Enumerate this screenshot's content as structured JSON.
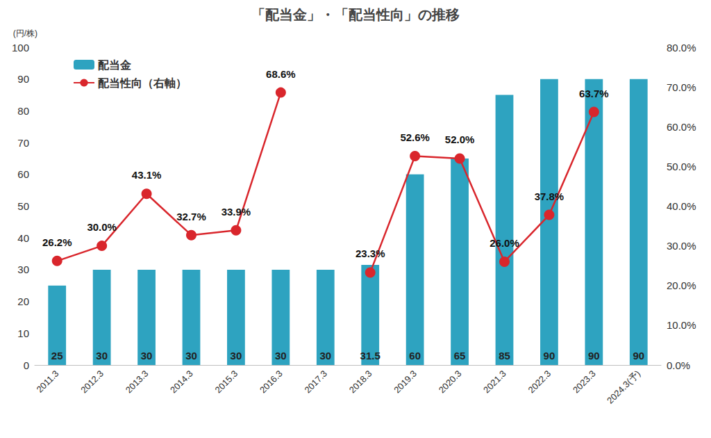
{
  "chart_data": {
    "type": "bar",
    "title": "「配当金」・「配当性向」の推移",
    "ylabel": "(円/株)",
    "categories": [
      "2011.3",
      "2012.3",
      "2013.3",
      "2014.3",
      "2015.3",
      "2016.3",
      "2017.3",
      "2018.3",
      "2019.3",
      "2020.3",
      "2021.3",
      "2022.3",
      "2023.3",
      "2024.3(予)"
    ],
    "series": [
      {
        "name": "配当金",
        "type": "bar",
        "color": "#2ea3c0",
        "values": [
          25,
          30,
          30,
          30,
          30,
          30,
          30,
          31.5,
          60,
          65,
          85,
          90,
          90,
          90
        ],
        "data_labels": true
      },
      {
        "name": "配当性向（右軸）",
        "type": "line",
        "axis": "y2",
        "color": "#d9262c",
        "marker": "circle",
        "values": [
          26.2,
          30.0,
          43.1,
          32.7,
          33.9,
          68.6,
          null,
          23.3,
          52.6,
          52.0,
          26.0,
          37.8,
          63.7,
          null
        ],
        "value_labels": [
          "26.2%",
          "30.0%",
          "43.1%",
          "32.7%",
          "33.9%",
          "68.6%",
          null,
          "23.3%",
          "52.6%",
          "52.0%",
          "26.0%",
          "37.8%",
          "63.7%",
          null
        ],
        "data_labels": true
      }
    ],
    "ylim": [
      0,
      100
    ],
    "yticks": [
      0,
      10,
      20,
      30,
      40,
      50,
      60,
      70,
      80,
      90,
      100
    ],
    "y2lim": [
      0,
      80
    ],
    "y2ticks": [
      {
        "value": 0,
        "label": "0.0%"
      },
      {
        "value": 10,
        "label": "10.0%"
      },
      {
        "value": 20,
        "label": "20.0%"
      },
      {
        "value": 30,
        "label": "30.0%"
      },
      {
        "value": 40,
        "label": "40.0%"
      },
      {
        "value": 50,
        "label": "50.0%"
      },
      {
        "value": 60,
        "label": "60.0%"
      },
      {
        "value": 70,
        "label": "70.0%"
      },
      {
        "value": 80,
        "label": "80.0%"
      }
    ],
    "legend": "upper left",
    "grid": false
  }
}
